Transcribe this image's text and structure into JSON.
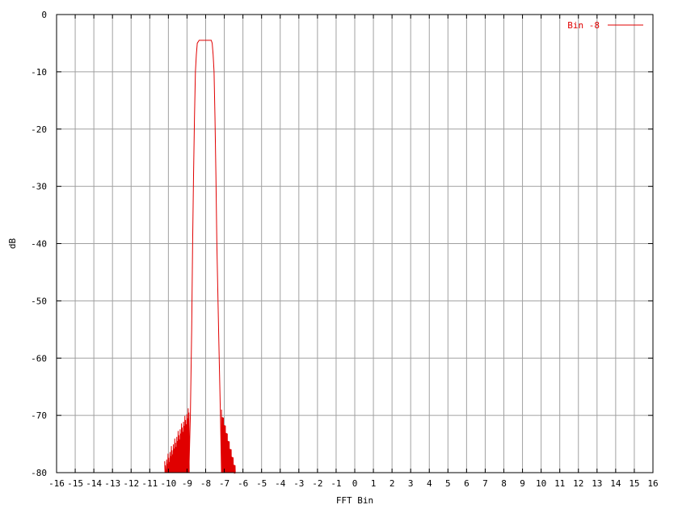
{
  "chart_data": {
    "type": "line",
    "title": "",
    "xlabel": "FFT Bin",
    "ylabel": "dB",
    "xlim": [
      -16,
      16
    ],
    "ylim": [
      -80,
      0
    ],
    "x_ticks": [
      "-16",
      "-15",
      "-14",
      "-13",
      "-12",
      "-11",
      "-10",
      "-9",
      "-8",
      "-7",
      "-6",
      "-5",
      "-4",
      "-3",
      "-2",
      "-1",
      "0",
      "1",
      "2",
      "3",
      "4",
      "5",
      "6",
      "7",
      "8",
      "9",
      "10",
      "11",
      "12",
      "13",
      "14",
      "15",
      "16"
    ],
    "y_ticks": [
      "0",
      "-10",
      "-20",
      "-30",
      "-40",
      "-50",
      "-60",
      "-70",
      "-80"
    ],
    "grid": true,
    "legend_position": "top-right",
    "colors": {
      "series": "#e00000",
      "grid": "#a0a0a0",
      "axis": "#000000"
    },
    "series": [
      {
        "name": "Bin -8",
        "main_lobe": {
          "x": [
            -8.9,
            -8.82,
            -8.75,
            -8.7,
            -8.65,
            -8.6,
            -8.55,
            -8.5,
            -8.45,
            -8.35,
            -8.2,
            -8.0,
            -7.85,
            -7.7,
            -7.65,
            -7.6,
            -7.55,
            -7.5,
            -7.45,
            -7.4,
            -7.35,
            -7.3,
            -7.22,
            -7.15
          ],
          "y": [
            -80,
            -70,
            -55,
            -40,
            -28,
            -18,
            -10,
            -7,
            -5,
            -4.5,
            -4.5,
            -4.5,
            -4.5,
            -4.5,
            -5,
            -7,
            -10,
            -18,
            -28,
            -40,
            -48,
            -56,
            -68,
            -80
          ]
        },
        "left_sidelobes": {
          "x_start": -10.2,
          "x_end": -8.9,
          "peak_start": -78,
          "peak_end": -68.5
        },
        "right_sidelobes": {
          "x_start": -7.15,
          "x_end": -6.4,
          "peak_start": -69,
          "peak_end": -79
        }
      }
    ]
  }
}
